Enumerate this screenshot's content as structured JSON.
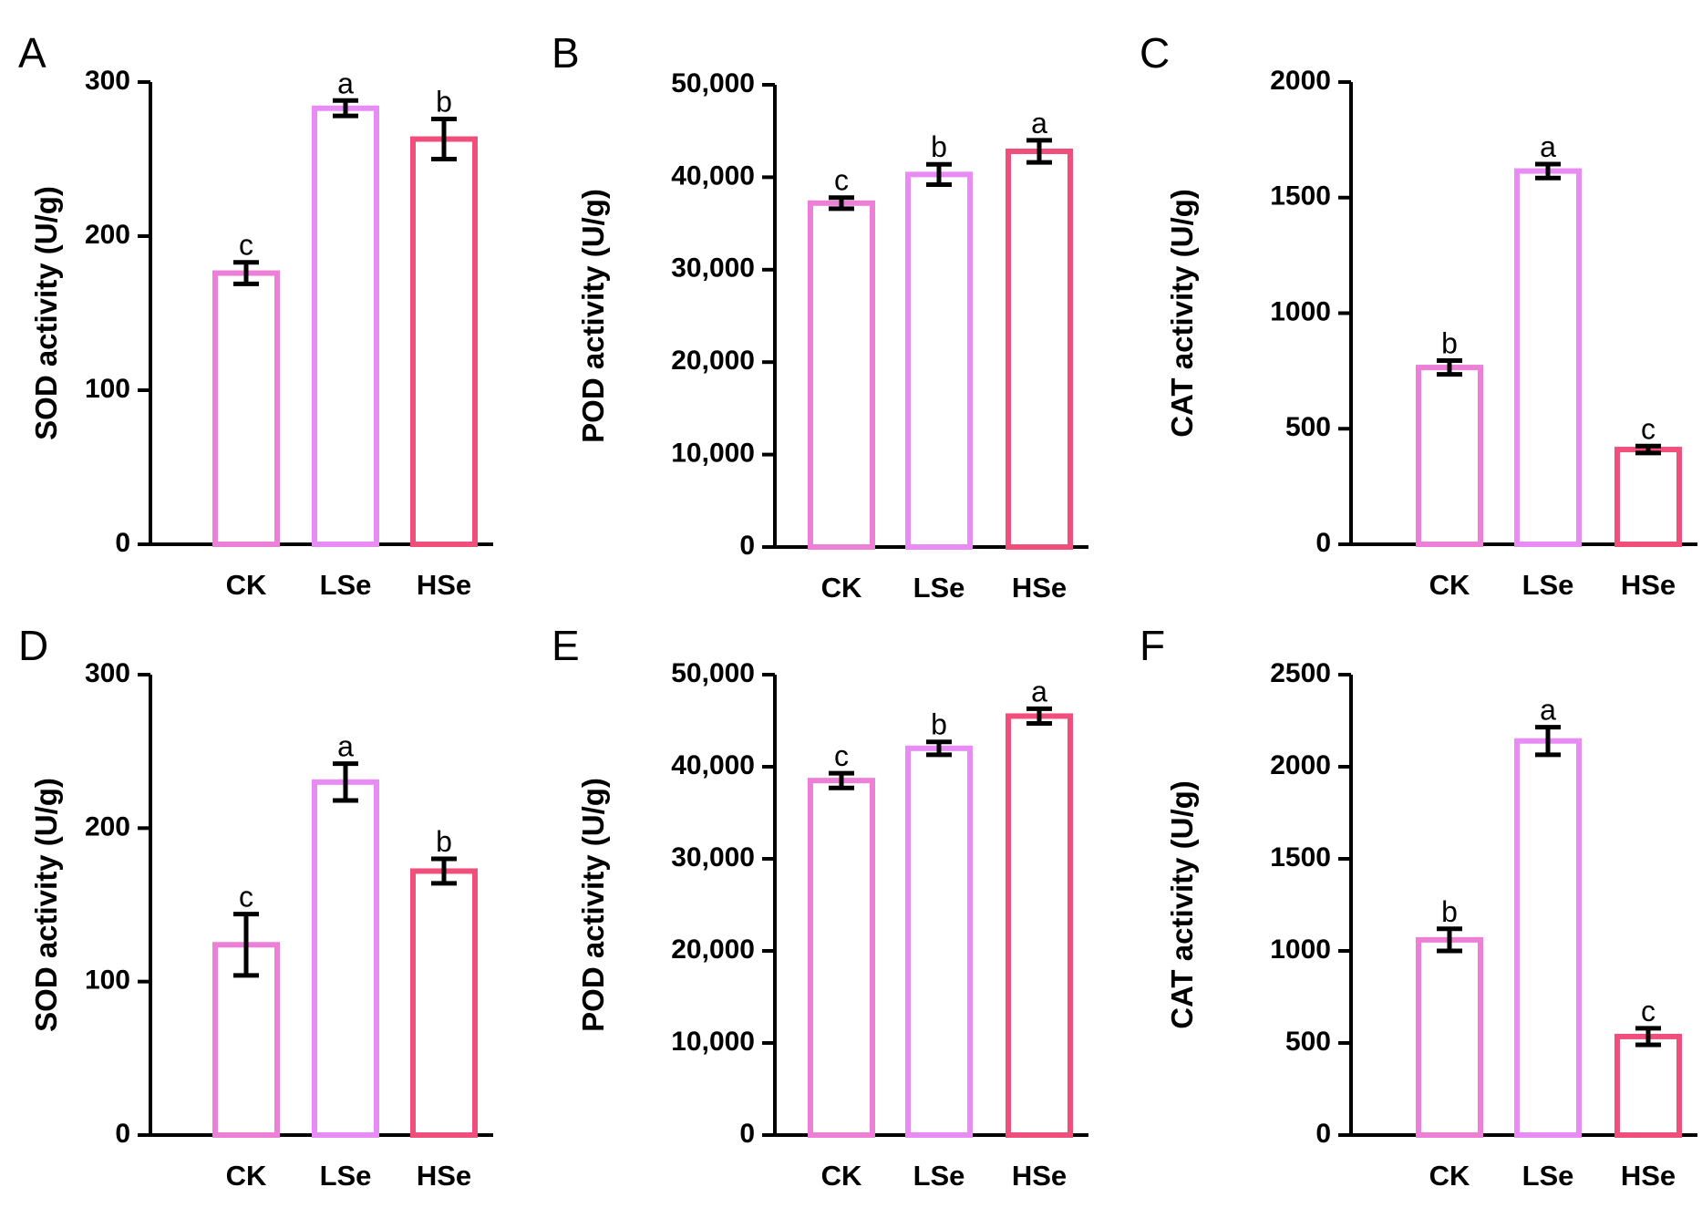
{
  "colors": {
    "CK": "#ee7fd6",
    "LSe": "#e98bf5",
    "HSe": "#ef4f7a"
  },
  "chart_data": [
    {
      "panel": "A",
      "type": "bar",
      "categories": [
        "CK",
        "LSe",
        "HSe"
      ],
      "values": [
        176,
        283,
        263
      ],
      "errors": [
        7,
        5,
        13
      ],
      "letters": [
        "c",
        "a",
        "b"
      ],
      "ylabel": "SOD activity (U/g)",
      "ylim": [
        0,
        300
      ],
      "yticks": [
        0,
        100,
        200,
        300
      ],
      "ytick_labels": [
        "0",
        "100",
        "200",
        "300"
      ]
    },
    {
      "panel": "B",
      "type": "bar",
      "categories": [
        "CK",
        "LSe",
        "HSe"
      ],
      "values": [
        37200,
        40300,
        42800
      ],
      "errors": [
        600,
        1100,
        1200
      ],
      "letters": [
        "c",
        "b",
        "a"
      ],
      "ylabel": "POD activity (U/g)",
      "ylim": [
        0,
        50000
      ],
      "yticks": [
        0,
        10000,
        20000,
        30000,
        40000,
        50000
      ],
      "ytick_labels": [
        "0",
        "10,000",
        "20,000",
        "30,000",
        "40,000",
        "50,000"
      ]
    },
    {
      "panel": "C",
      "type": "bar",
      "categories": [
        "CK",
        "LSe",
        "HSe"
      ],
      "values": [
        765,
        1615,
        410
      ],
      "errors": [
        30,
        30,
        15
      ],
      "letters": [
        "b",
        "a",
        "c"
      ],
      "ylabel": "CAT activity (U/g)",
      "ylim": [
        0,
        2000
      ],
      "yticks": [
        0,
        500,
        1000,
        1500,
        2000
      ],
      "ytick_labels": [
        "0",
        "500",
        "1000",
        "1500",
        "2000"
      ]
    },
    {
      "panel": "D",
      "type": "bar",
      "categories": [
        "CK",
        "LSe",
        "HSe"
      ],
      "values": [
        124,
        230,
        172
      ],
      "errors": [
        20,
        12,
        8
      ],
      "letters": [
        "c",
        "a",
        "b"
      ],
      "ylabel": "SOD activity (U/g)",
      "ylim": [
        0,
        300
      ],
      "yticks": [
        0,
        100,
        200,
        300
      ],
      "ytick_labels": [
        "0",
        "100",
        "200",
        "300"
      ]
    },
    {
      "panel": "E",
      "type": "bar",
      "categories": [
        "CK",
        "LSe",
        "HSe"
      ],
      "values": [
        38500,
        42000,
        45500
      ],
      "errors": [
        800,
        700,
        800
      ],
      "letters": [
        "c",
        "b",
        "a"
      ],
      "ylabel": "POD activity (U/g)",
      "ylim": [
        0,
        50000
      ],
      "yticks": [
        0,
        10000,
        20000,
        30000,
        40000,
        50000
      ],
      "ytick_labels": [
        "0",
        "10,000",
        "20,000",
        "30,000",
        "40,000",
        "50,000"
      ]
    },
    {
      "panel": "F",
      "type": "bar",
      "categories": [
        "CK",
        "LSe",
        "HSe"
      ],
      "values": [
        1060,
        2140,
        535
      ],
      "errors": [
        60,
        75,
        45
      ],
      "letters": [
        "b",
        "a",
        "c"
      ],
      "ylabel": "CAT activity (U/g)",
      "ylim": [
        0,
        2500
      ],
      "yticks": [
        0,
        500,
        1000,
        1500,
        2000,
        2500
      ],
      "ytick_labels": [
        "0",
        "500",
        "1000",
        "1500",
        "2000",
        "2500"
      ]
    }
  ]
}
